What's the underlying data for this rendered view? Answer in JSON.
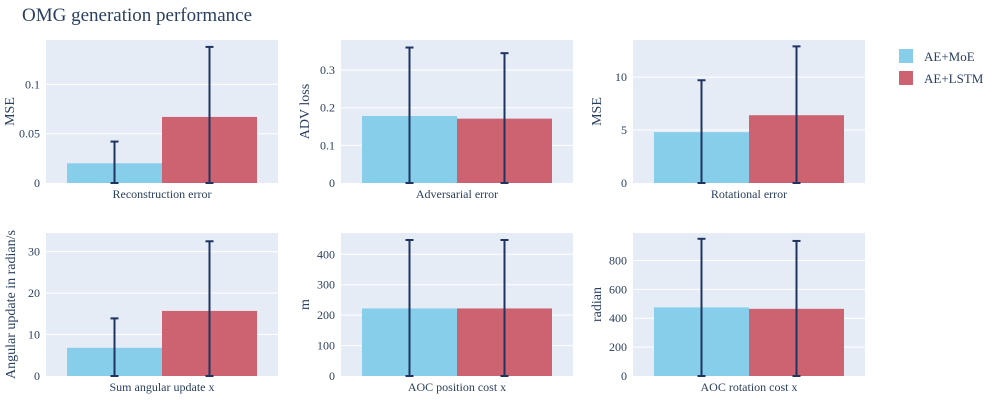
{
  "title": "OMG generation performance",
  "colors": {
    "plot_bg": "#e5ecf6",
    "grid": "#ffffff",
    "error_bar": "#1f3461",
    "text": "#2a3f5f"
  },
  "legend": {
    "placement": "top-right",
    "items": [
      {
        "label": "AE+MoE",
        "color": "#87ceeb"
      },
      {
        "label": "AE+LSTM",
        "color": "#cd6270"
      }
    ]
  },
  "chart_data": [
    {
      "type": "bar",
      "xlabel": "Reconstruction error",
      "ylabel": "MSE",
      "ylim": [
        0,
        0.145
      ],
      "yticks": [
        0,
        0.05,
        0.1
      ],
      "ytick_labels": [
        "0",
        "0.05",
        "0.1"
      ],
      "series": [
        {
          "name": "AE+MoE",
          "value": 0.02,
          "error": 0.022
        },
        {
          "name": "AE+LSTM",
          "value": 0.067,
          "error": 0.071
        }
      ]
    },
    {
      "type": "bar",
      "xlabel": "Adversarial error",
      "ylabel": "ADV loss",
      "ylim": [
        0,
        0.38
      ],
      "yticks": [
        0,
        0.1,
        0.2,
        0.3
      ],
      "ytick_labels": [
        "0",
        "0.1",
        "0.2",
        "0.3"
      ],
      "series": [
        {
          "name": "AE+MoE",
          "value": 0.178,
          "error": 0.182
        },
        {
          "name": "AE+LSTM",
          "value": 0.171,
          "error": 0.174
        }
      ]
    },
    {
      "type": "bar",
      "xlabel": "Rotational error",
      "ylabel": "MSE",
      "ylim": [
        0,
        13.5
      ],
      "yticks": [
        0,
        5,
        10
      ],
      "ytick_labels": [
        "0",
        "5",
        "10"
      ],
      "series": [
        {
          "name": "AE+MoE",
          "value": 4.8,
          "error": 4.9
        },
        {
          "name": "AE+LSTM",
          "value": 6.4,
          "error": 6.5
        }
      ]
    },
    {
      "type": "bar",
      "xlabel": "Sum angular update x",
      "ylabel": "Angular update in radian/s",
      "ylim": [
        0,
        34.5
      ],
      "yticks": [
        0,
        10,
        20,
        30
      ],
      "ytick_labels": [
        "0",
        "10",
        "20",
        "30"
      ],
      "series": [
        {
          "name": "AE+MoE",
          "value": 6.8,
          "error": 7.1
        },
        {
          "name": "AE+LSTM",
          "value": 15.7,
          "error": 16.8
        }
      ]
    },
    {
      "type": "bar",
      "xlabel": "AOC position cost x",
      "ylabel": "m",
      "ylim": [
        0,
        470
      ],
      "yticks": [
        0,
        100,
        200,
        300,
        400
      ],
      "ytick_labels": [
        "0",
        "100",
        "200",
        "300",
        "400"
      ],
      "series": [
        {
          "name": "AE+MoE",
          "value": 222,
          "error": 225
        },
        {
          "name": "AE+LSTM",
          "value": 222,
          "error": 225
        }
      ]
    },
    {
      "type": "bar",
      "xlabel": "AOC rotation cost x",
      "ylabel": "radian",
      "ylim": [
        0,
        990
      ],
      "yticks": [
        0,
        200,
        400,
        600,
        800
      ],
      "ytick_labels": [
        "0",
        "200",
        "400",
        "600",
        "800"
      ],
      "series": [
        {
          "name": "AE+MoE",
          "value": 475,
          "error": 475
        },
        {
          "name": "AE+LSTM",
          "value": 465,
          "error": 470
        }
      ]
    }
  ]
}
